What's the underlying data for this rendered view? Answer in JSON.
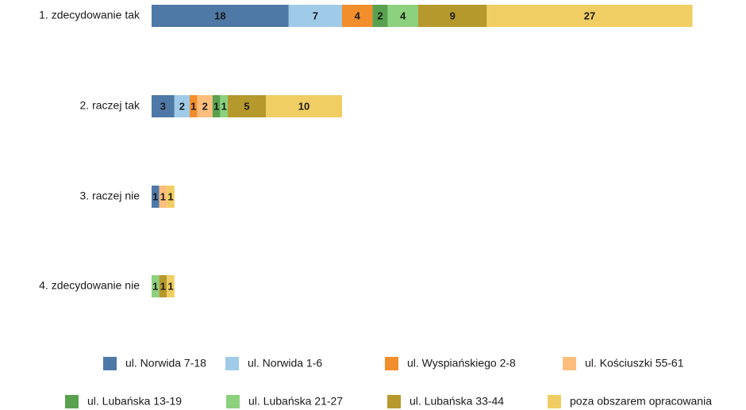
{
  "chart_data": {
    "type": "stacked-barh",
    "categories": [
      "1. zdecydowanie tak",
      "2. raczej tak",
      "3. raczej nie",
      "4. zdecydowanie nie"
    ],
    "series": [
      {
        "name": "ul. Norwida 7-18",
        "color": "#4e79a7",
        "values": [
          18,
          3,
          1,
          null
        ]
      },
      {
        "name": "ul. Norwida 1-6",
        "color": "#a0cbe8",
        "values": [
          7,
          2,
          null,
          null
        ]
      },
      {
        "name": "ul. Wyspiańskiego 2-8",
        "color": "#f28e2b",
        "values": [
          4,
          1,
          null,
          null
        ]
      },
      {
        "name": "ul. Kościuszki 55-61",
        "color": "#ffbe7d",
        "values": [
          null,
          2,
          1,
          null
        ]
      },
      {
        "name": "ul. Lubańska 13-19",
        "color": "#59a14f",
        "values": [
          2,
          1,
          null,
          null
        ]
      },
      {
        "name": "ul. Lubańska 21-27",
        "color": "#8cd17d",
        "values": [
          4,
          1,
          null,
          1
        ]
      },
      {
        "name": "ul. Lubańska 33-44",
        "color": "#b6992d",
        "values": [
          9,
          5,
          null,
          1
        ]
      },
      {
        "name": "poza obszarem opracowania",
        "color": "#f1ce63",
        "values": [
          27,
          10,
          1,
          1
        ]
      }
    ]
  }
}
